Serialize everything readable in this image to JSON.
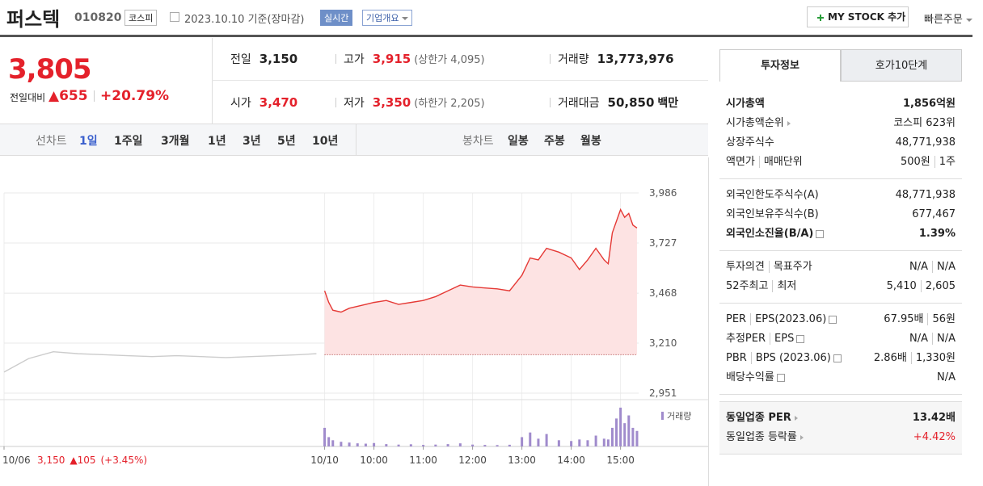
{
  "header": {
    "name": "퍼스텍",
    "code": "010820",
    "market": "코스피",
    "date": "2023.10.10 기준(장마감)",
    "realtime": "실시간",
    "company_button": "기업개요",
    "mystock_button": "MY STOCK 추가",
    "quick_order": "빠른주문"
  },
  "summary": {
    "price": "3,805",
    "change_label": "전일대비",
    "change": "▲655",
    "change_pct": "+20.79%",
    "items": [
      {
        "label": "전일",
        "value": "3,150"
      },
      {
        "label": "고가",
        "value": "3,915",
        "note": "(상한가 4,095)",
        "red": true
      },
      {
        "label": "거래량",
        "value": "13,773,976"
      },
      {
        "label": "시가",
        "value": "3,470",
        "red": true
      },
      {
        "label": "저가",
        "value": "3,350",
        "note": "(하한가 2,205)",
        "red": true
      },
      {
        "label": "거래대금",
        "value": "50,850",
        "unit": "백만"
      }
    ]
  },
  "chart_tabs": {
    "line_label": "선차트",
    "line_periods": [
      "1일",
      "1주일",
      "3개월",
      "1년",
      "3년",
      "5년",
      "10년"
    ],
    "active": 0,
    "candle_label": "봉차트",
    "candle_periods": [
      "일봉",
      "주봉",
      "월봉"
    ]
  },
  "chart_data": {
    "type": "line",
    "xlim": [
      0,
      772
    ],
    "xticks": [
      {
        "value": 0,
        "label": "10/06"
      },
      {
        "value": 390,
        "label": "10/10"
      },
      {
        "value": 450,
        "label": "10:00"
      },
      {
        "value": 510,
        "label": "11:00"
      },
      {
        "value": 570,
        "label": "12:00"
      },
      {
        "value": 630,
        "label": "13:00"
      },
      {
        "value": 690,
        "label": "14:00"
      },
      {
        "value": 750,
        "label": "15:00"
      }
    ],
    "ylim": [
      2951,
      3986
    ],
    "yticks": [
      {
        "value": 3986,
        "label": "3,986"
      },
      {
        "value": 3727,
        "label": "3,727"
      },
      {
        "value": 3468,
        "label": "3,468"
      },
      {
        "value": 3210,
        "label": "3,210"
      },
      {
        "value": 2951,
        "label": "2,951"
      }
    ],
    "grid": true,
    "reference_line": 3150,
    "series": [
      {
        "color": "#cccccc",
        "x": [
          0,
          30,
          60,
          90,
          120,
          150,
          180,
          210,
          240,
          270,
          300,
          330,
          360,
          380
        ],
        "values": [
          3060,
          3130,
          3165,
          3155,
          3150,
          3145,
          3140,
          3145,
          3140,
          3135,
          3140,
          3145,
          3150,
          3155
        ]
      },
      {
        "color": "#e53935",
        "x": [
          390,
          395,
          400,
          410,
          420,
          430,
          440,
          450,
          465,
          480,
          495,
          510,
          525,
          540,
          555,
          570,
          585,
          600,
          615,
          630,
          640,
          650,
          660,
          675,
          690,
          700,
          710,
          720,
          730,
          735,
          740,
          745,
          750,
          755,
          760,
          765,
          770
        ],
        "values": [
          3480,
          3420,
          3380,
          3370,
          3390,
          3400,
          3410,
          3420,
          3430,
          3410,
          3420,
          3430,
          3450,
          3480,
          3510,
          3500,
          3495,
          3490,
          3480,
          3560,
          3650,
          3640,
          3700,
          3680,
          3650,
          3590,
          3640,
          3700,
          3640,
          3620,
          3780,
          3840,
          3900,
          3860,
          3880,
          3820,
          3805
        ]
      }
    ],
    "volume": {
      "name": "거래량",
      "color": "#a08bcc",
      "ylim": [
        0,
        260000
      ],
      "values": [
        120000,
        60000,
        40000,
        30000,
        25000,
        20000,
        18000,
        22000,
        15000,
        12000,
        14000,
        10000,
        12000,
        15000,
        20000,
        12000,
        10000,
        9000,
        11000,
        60000,
        90000,
        50000,
        80000,
        40000,
        35000,
        45000,
        40000,
        70000,
        50000,
        45000,
        120000,
        180000,
        250000,
        150000,
        200000,
        120000,
        100000
      ]
    },
    "prev_day": {
      "close": "3,150",
      "change": "▲105",
      "change_pct": "(+3.45%)"
    }
  },
  "sidebar": {
    "tabs": [
      "투자정보",
      "호가10단계"
    ],
    "sections": [
      [
        {
          "label": [
            "시가총액"
          ],
          "value": [
            "1,856억원"
          ],
          "bold": true
        },
        {
          "label": [
            "시가총액순위"
          ],
          "value": [
            "코스피 623위"
          ],
          "arrow": true
        },
        {
          "label": [
            "상장주식수"
          ],
          "value": [
            "48,771,938"
          ]
        },
        {
          "label": [
            "액면가",
            "매매단위"
          ],
          "value": [
            "500원",
            "1주"
          ]
        }
      ],
      [
        {
          "label": [
            "외국인한도주식수(A)"
          ],
          "value": [
            "48,771,938"
          ]
        },
        {
          "label": [
            "외국인보유주식수(B)"
          ],
          "value": [
            "677,467"
          ]
        },
        {
          "label": [
            "외국인소진율(B/A)"
          ],
          "value": [
            "1.39%"
          ],
          "bold": true,
          "help": true
        }
      ],
      [
        {
          "label": [
            "투자의견",
            "목표주가"
          ],
          "value": [
            "N/A",
            "N/A"
          ]
        },
        {
          "label": [
            "52주최고",
            "최저"
          ],
          "value": [
            "5,410",
            "2,605"
          ]
        }
      ],
      [
        {
          "label": [
            "PER",
            "EPS(2023.06)"
          ],
          "value": [
            "67.95배",
            "56원"
          ],
          "help": true
        },
        {
          "label": [
            "추정PER",
            "EPS"
          ],
          "value": [
            "N/A",
            "N/A"
          ],
          "help": true
        },
        {
          "label": [
            "PBR",
            "BPS (2023.06)"
          ],
          "value": [
            "2.86배",
            "1,330원"
          ],
          "help": true
        },
        {
          "label": [
            "배당수익률"
          ],
          "value": [
            "N/A"
          ],
          "help": true
        }
      ],
      [
        {
          "label": [
            "동일업종 PER"
          ],
          "value": [
            "13.42배"
          ],
          "bold": true,
          "arrow": true
        },
        {
          "label": [
            "동일업종 등락률"
          ],
          "value": [
            "+4.42%"
          ],
          "red": true,
          "arrow": true
        }
      ]
    ]
  }
}
